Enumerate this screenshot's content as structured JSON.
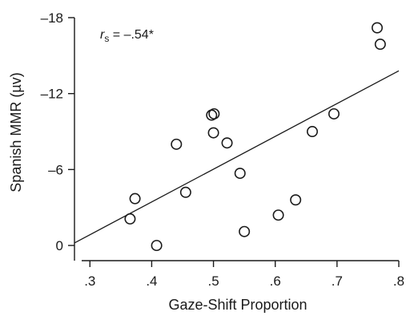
{
  "chart_data": {
    "type": "scatter",
    "title": "",
    "xlabel": "Gaze-Shift Proportion",
    "ylabel": "Spanish MMR (µv)",
    "xlim": [
      0.275,
      0.8
    ],
    "ylim": [
      1.2,
      -18
    ],
    "y_axis_inverted": true,
    "grid": false,
    "legend": "none",
    "x_ticks": [
      0.3,
      0.4,
      0.5,
      0.6,
      0.7,
      0.8
    ],
    "x_tick_labels": [
      ".3",
      ".4",
      ".5",
      ".6",
      ".7",
      ".8"
    ],
    "y_ticks": [
      0,
      -6,
      -12,
      -18
    ],
    "y_tick_labels": [
      "0",
      "–6",
      "–12",
      "–18"
    ],
    "annotation": {
      "symbol": "r",
      "subscript": "s",
      "text": " = –.54*"
    },
    "points": [
      {
        "x": 0.365,
        "y": -2.1
      },
      {
        "x": 0.373,
        "y": -3.7
      },
      {
        "x": 0.408,
        "y": 0.0
      },
      {
        "x": 0.44,
        "y": -8.0
      },
      {
        "x": 0.455,
        "y": -4.2
      },
      {
        "x": 0.497,
        "y": -10.3
      },
      {
        "x": 0.501,
        "y": -10.4
      },
      {
        "x": 0.5,
        "y": -8.9
      },
      {
        "x": 0.522,
        "y": -8.1
      },
      {
        "x": 0.543,
        "y": -5.7
      },
      {
        "x": 0.55,
        "y": -1.1
      },
      {
        "x": 0.605,
        "y": -2.4
      },
      {
        "x": 0.633,
        "y": -3.6
      },
      {
        "x": 0.66,
        "y": -9.0
      },
      {
        "x": 0.695,
        "y": -10.4
      },
      {
        "x": 0.765,
        "y": -17.2
      },
      {
        "x": 0.77,
        "y": -15.9
      }
    ],
    "regression_line": [
      {
        "x": 0.275,
        "y": -0.2
      },
      {
        "x": 0.8,
        "y": -13.8
      }
    ],
    "colors": {
      "axis": "#1a1a1a",
      "marker": "#1a1a1a",
      "line": "#1a1a1a",
      "background": "#ffffff"
    }
  }
}
